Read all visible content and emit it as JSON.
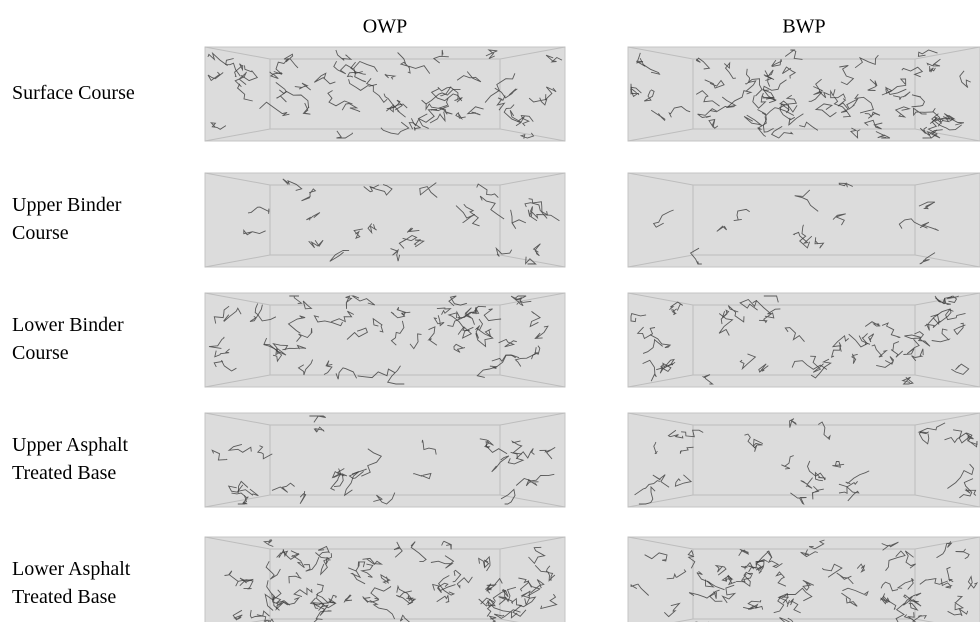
{
  "columns": [
    "OWP",
    "BWP"
  ],
  "rows": [
    {
      "label": [
        "Surface Course"
      ]
    },
    {
      "label": [
        "Upper Binder",
        "Course"
      ]
    },
    {
      "label": [
        "Lower Binder",
        "Course"
      ]
    },
    {
      "label": [
        "Upper Asphalt",
        "Treated Base"
      ]
    },
    {
      "label": [
        "Lower Asphalt",
        "Treated Base"
      ]
    }
  ]
}
